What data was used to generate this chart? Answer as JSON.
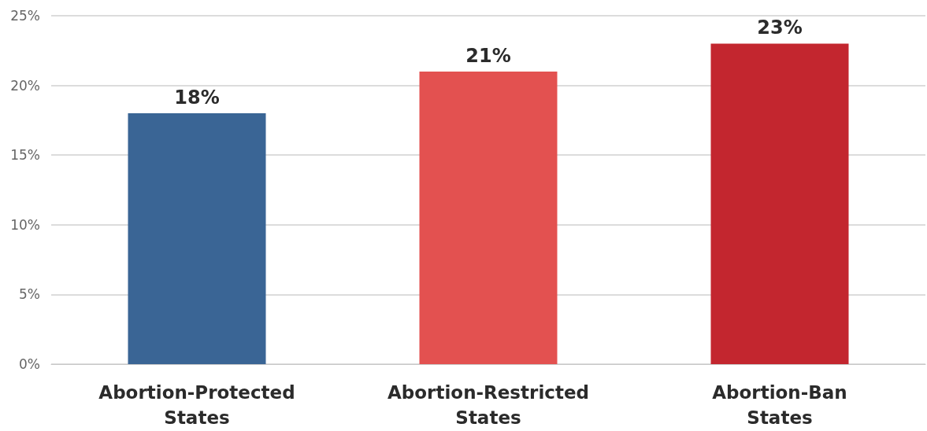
{
  "chart_data": {
    "type": "bar",
    "categories": [
      "Abortion-Protected States",
      "Abortion-Restricted States",
      "Abortion-Ban States"
    ],
    "values": [
      18,
      21,
      23
    ],
    "colors": [
      "#3a6595",
      "#e35150",
      "#c3262f"
    ],
    "value_labels": [
      "18%",
      "21%",
      "23%"
    ],
    "ylim": [
      0,
      25
    ],
    "yticks": [
      {
        "value": 0,
        "label": "0%"
      },
      {
        "value": 5,
        "label": "5%"
      },
      {
        "value": 10,
        "label": "10%"
      },
      {
        "value": 15,
        "label": "15%"
      },
      {
        "value": 20,
        "label": "20%"
      },
      {
        "value": 25,
        "label": "25%"
      }
    ],
    "grid": "y"
  }
}
